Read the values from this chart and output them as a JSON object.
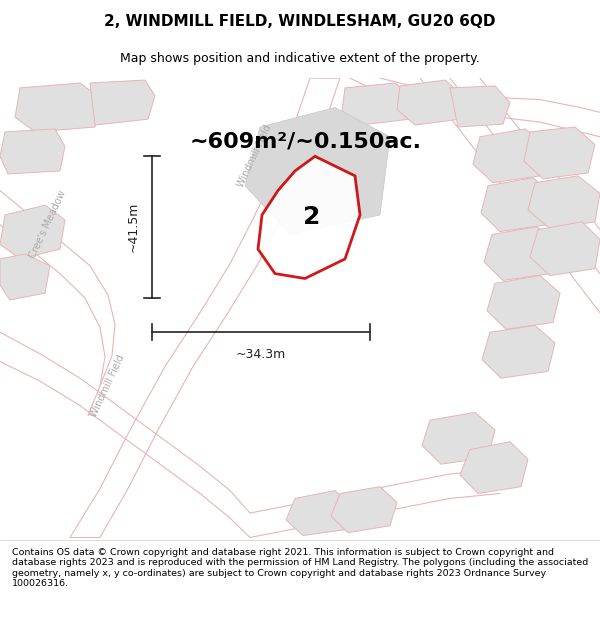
{
  "title": "2, WINDMILL FIELD, WINDLESHAM, GU20 6QD",
  "subtitle": "Map shows position and indicative extent of the property.",
  "area_label": "~609m²/~0.150ac.",
  "plot_number": "2",
  "dim_width": "~34.3m",
  "dim_height": "~41.5m",
  "footer_text": "Contains OS data © Crown copyright and database right 2021. This information is subject to Crown copyright and database rights 2023 and is reproduced with the permission of HM Land Registry. The polygons (including the associated geometry, namely x, y co-ordinates) are subject to Crown copyright and database rights 2023 Ordnance Survey 100026316.",
  "road_label_1": "Cree's Meadow",
  "road_label_2": "Windmill Field",
  "road_label_3": "Windmill Field",
  "map_bg": "#f2f2f2",
  "road_fill": "#ffffff",
  "road_edge": "#e8b4b8",
  "building_fill": "#e0e0e0",
  "building_edge": "#e8b4b8",
  "poly_edge": "#cc0000",
  "poly_fill": "#ffffff",
  "dim_color": "#222222",
  "label_color": "#aaaaaa",
  "title_fontsize": 11,
  "subtitle_fontsize": 9,
  "area_fontsize": 16,
  "number_fontsize": 18,
  "dim_fontsize": 9,
  "road_fontsize": 7,
  "footer_fontsize": 6.8
}
